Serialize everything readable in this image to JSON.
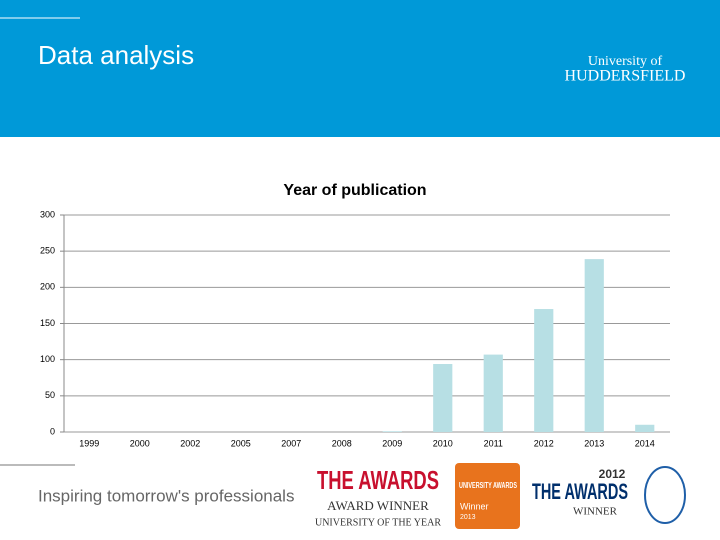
{
  "slide": {
    "title": "Data analysis",
    "logo": {
      "line1": "University of",
      "line2": "HUDDERSFIELD"
    },
    "tagline": "Inspiring tomorrow's professionals",
    "awards": [
      {
        "head": "THE AWARDS",
        "sub": "AWARD WINNER",
        "foot": "UNIVERSITY OF THE YEAR"
      },
      {
        "head": "UNIVERSITY AWARDS",
        "sub": "Winner",
        "foot": "2013"
      },
      {
        "head": "THE AWARDS",
        "sub": "WINNER",
        "foot": "2012"
      }
    ]
  },
  "chart_data": {
    "type": "bar",
    "title": "Year of publication",
    "categories": [
      "1999",
      "2000",
      "2002",
      "2005",
      "2007",
      "2008",
      "2009",
      "2010",
      "2011",
      "2012",
      "2013",
      "2014"
    ],
    "values": [
      0,
      0,
      0,
      0,
      0,
      0,
      1,
      94,
      107,
      170,
      239,
      10
    ],
    "color": "#b7dfe4",
    "ylim": [
      0,
      300
    ],
    "yticks": [
      0,
      50,
      100,
      150,
      200,
      250,
      300
    ],
    "grid": true
  }
}
